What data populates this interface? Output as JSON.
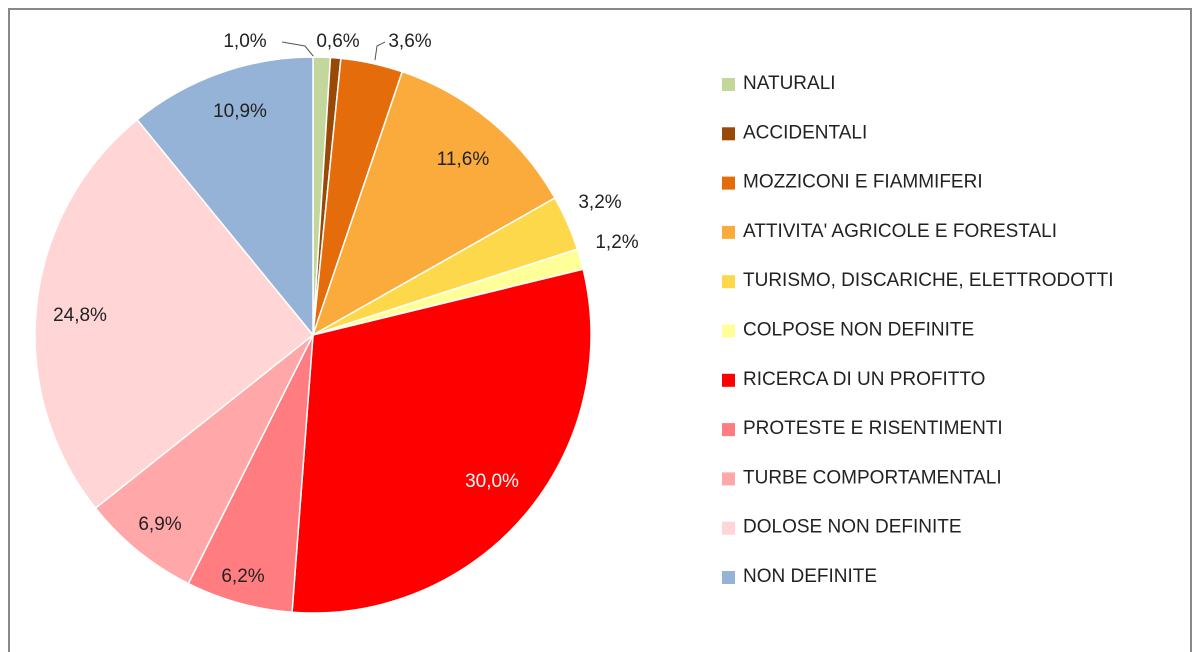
{
  "chart_data": {
    "type": "pie",
    "categories": [
      "NATURALI",
      "ACCIDENTALI",
      "MOZZICONI E FIAMMIFERI",
      "ATTIVITA' AGRICOLE E FORESTALI",
      "TURISMO, DISCARICHE, ELETTRODOTTI",
      "COLPOSE NON DEFINITE",
      "RICERCA DI UN PROFITTO",
      "PROTESTE E RISENTIMENTI",
      "TURBE COMPORTAMENTALI",
      "DOLOSE NON DEFINITE",
      "NON DEFINITE"
    ],
    "values": [
      1.0,
      0.6,
      3.6,
      11.6,
      3.2,
      1.2,
      30.0,
      6.2,
      6.9,
      24.8,
      10.9
    ],
    "value_labels": [
      "1,0%",
      "0,6%",
      "3,6%",
      "11,6%",
      "3,2%",
      "1,2%",
      "30,0%",
      "6,2%",
      "6,9%",
      "24,8%",
      "10,9%"
    ],
    "colors": [
      "#c3d69b",
      "#984807",
      "#e46c0a",
      "#fbab3b",
      "#fdd84a",
      "#ffff99",
      "#ff0000",
      "#ff7c80",
      "#ffa7a9",
      "#ffd5d5",
      "#95b3d7"
    ],
    "legend": "right"
  }
}
